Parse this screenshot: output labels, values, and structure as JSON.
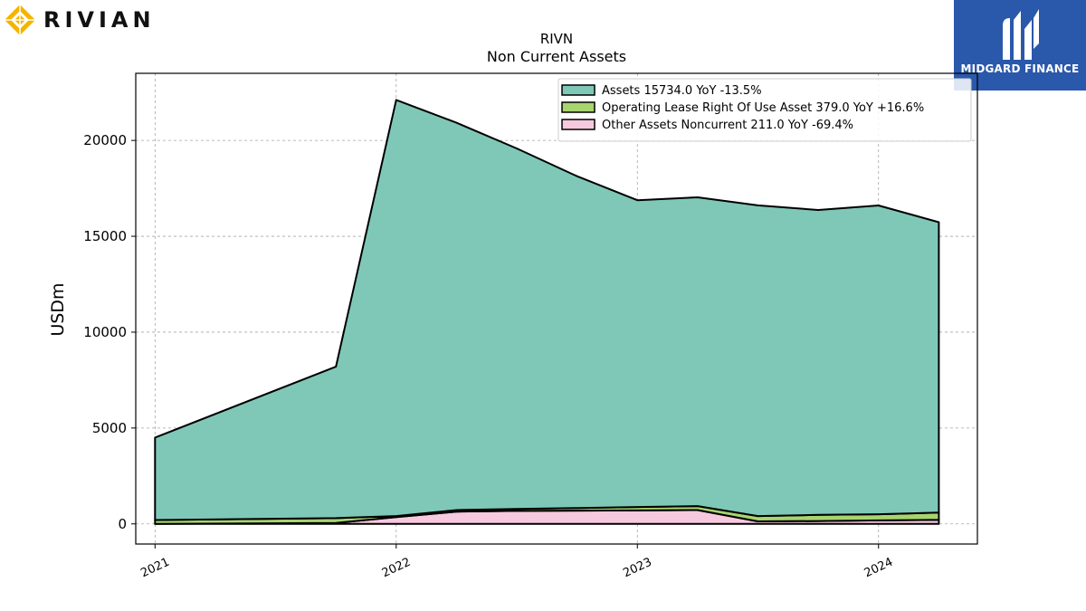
{
  "header": {
    "brand_name": "RIVIAN",
    "brand_logo_icon": "rivian-diamond-icon",
    "brand_color": "#f4b400",
    "partner_name": "MIDGARD FINANCE",
    "partner_logo_icon": "midgard-m-icon",
    "partner_color": "#2a58ab"
  },
  "chart_data": {
    "type": "area",
    "title": "RIVN",
    "subtitle": "Non Current  Assets",
    "ylabel": "USDm",
    "xlabel": "",
    "xlim": [
      2020.92,
      2024.41
    ],
    "ylim": [
      -1050,
      23500
    ],
    "xticks": [
      2021,
      2022,
      2023,
      2024
    ],
    "xtick_labels": [
      "2021",
      "2022",
      "2023",
      "2024"
    ],
    "yticks": [
      0,
      5000,
      10000,
      15000,
      20000
    ],
    "ytick_labels": [
      "0",
      "5000",
      "10000",
      "15000",
      "20000"
    ],
    "grid": true,
    "legend_position": "top-right",
    "x": [
      2021.0,
      2021.75,
      2022.0,
      2022.25,
      2022.5,
      2022.75,
      2023.0,
      2023.25,
      2023.5,
      2023.75,
      2024.0,
      2024.25
    ],
    "series": [
      {
        "name": "Other Assets Noncurrent",
        "legend_label": "Other Assets Noncurrent  211.0 YoY -69.4%",
        "color": "#f6c9de",
        "values": [
          0,
          50,
          350,
          640,
          680,
          690,
          700,
          720,
          130,
          150,
          180,
          211
        ]
      },
      {
        "name": "Operating Lease Right Of Use Asset",
        "legend_label": "Operating Lease Right Of Use Asset  379.0 YoY +16.6%",
        "color": "#a7d46f",
        "values": [
          200,
          250,
          60,
          80,
          100,
          140,
          180,
          210,
          280,
          320,
          325,
          379
        ]
      },
      {
        "name": "Assets",
        "legend_label": "Assets  15734.0 YoY -13.5%",
        "color": "#7fc8b8",
        "values": [
          4300,
          7900,
          21700,
          20200,
          18800,
          17300,
          16000,
          16100,
          16200,
          15900,
          16100,
          15144
        ]
      }
    ]
  }
}
